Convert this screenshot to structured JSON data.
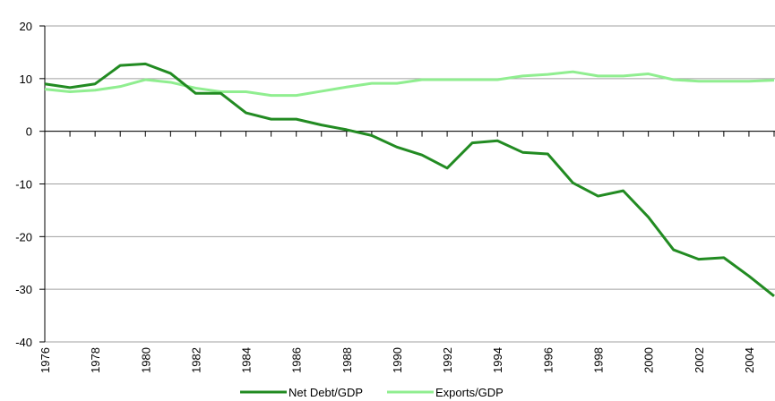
{
  "chart_data": {
    "type": "line",
    "x": [
      1976,
      1977,
      1978,
      1979,
      1980,
      1981,
      1982,
      1983,
      1984,
      1985,
      1986,
      1987,
      1988,
      1989,
      1990,
      1991,
      1992,
      1993,
      1994,
      1995,
      1996,
      1997,
      1998,
      1999,
      2000,
      2001,
      2002,
      2003,
      2004,
      2005
    ],
    "series": [
      {
        "name": "Net Debt/GDP",
        "color": "#228b22",
        "values": [
          9,
          8.3,
          9,
          12.5,
          12.8,
          11,
          7.2,
          7.2,
          3.5,
          2.3,
          2.3,
          1.2,
          0.3,
          -0.8,
          -3,
          -4.5,
          -7,
          -2.2,
          -1.8,
          -4,
          -4.3,
          -9.8,
          -12.3,
          -11.3,
          -16.3,
          -22.5,
          -24.3,
          -24,
          -27.5,
          -31.3
        ]
      },
      {
        "name": "Exports/GDP",
        "color": "#90ee90",
        "values": [
          8,
          7.5,
          7.8,
          8.5,
          9.8,
          9.3,
          8.2,
          7.5,
          7.5,
          6.8,
          6.8,
          7.6,
          8.4,
          9.1,
          9.1,
          9.8,
          9.8,
          9.8,
          9.8,
          10.5,
          10.8,
          11.3,
          10.5,
          10.5,
          10.9,
          9.8,
          9.5,
          9.5,
          9.5,
          9.7
        ]
      }
    ],
    "xlim": [
      1976,
      2005
    ],
    "xticks": [
      1976,
      1978,
      1980,
      1982,
      1984,
      1986,
      1988,
      1990,
      1992,
      1994,
      1996,
      1998,
      2000,
      2002,
      2004
    ],
    "ylim": [
      -40,
      20
    ],
    "yticks": [
      -40,
      -30,
      -20,
      -10,
      0,
      10,
      20
    ],
    "grid": true,
    "legend": "bottom"
  }
}
